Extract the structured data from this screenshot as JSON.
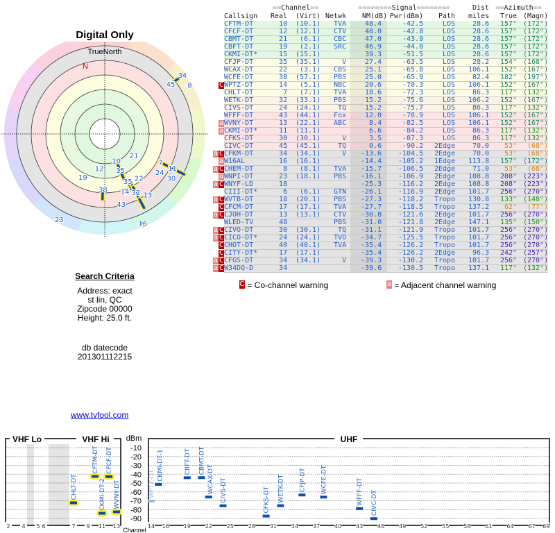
{
  "polar": {
    "title": "Digital Only",
    "north_label": "TrueNorth",
    "magnetic_n": "N"
  },
  "search": {
    "heading": "Search Criteria",
    "address": "Address: exact",
    "city": "st lin, QC",
    "zipcode": "Zipcode 00000",
    "height": "Height: 25.0 ft.",
    "db_label": "db datecode",
    "db_code": "201301112215"
  },
  "link": "www.tvfool.com",
  "table": {
    "group_channel": "Channel",
    "group_signal": "Signal",
    "group_dist": "Dist",
    "group_azimuth": "Azimuth",
    "headers": [
      "Callsign",
      "Real",
      "(Virt)",
      "Netwk",
      "NM(dB)",
      "Pwr(dBm)",
      "Path",
      "miles",
      "True",
      "(Magn)"
    ],
    "rows": [
      {
        "flags": "",
        "callsign": "CFTM-DT",
        "real": "10",
        "virt": "(10.1)",
        "netwk": "TVA",
        "nm": "48.4",
        "pwr": "-42.5",
        "path": "LOS",
        "dist": "28.6",
        "true": "157°",
        "magn": "(172°)",
        "bg": "#e3f7e3",
        "az": "#17855f"
      },
      {
        "flags": "",
        "callsign": "CFCF-DT",
        "real": "12",
        "virt": "(12.1)",
        "netwk": "CTV",
        "nm": "48.0",
        "pwr": "-42.8",
        "path": "LOS",
        "dist": "28.6",
        "true": "157°",
        "magn": "(172°)",
        "bg": "#e3f7e3",
        "az": "#17855f"
      },
      {
        "flags": "",
        "callsign": "CBMT-DT",
        "real": "21",
        "virt": "(6.1)",
        "netwk": "CBC",
        "nm": "47.0",
        "pwr": "-43.9",
        "path": "LOS",
        "dist": "28.6",
        "true": "157°",
        "magn": "(172°)",
        "bg": "#e3f7e3",
        "az": "#17855f"
      },
      {
        "flags": "",
        "callsign": "CBFT-DT",
        "real": "19",
        "virt": "(2.1)",
        "netwk": "SRC",
        "nm": "46.9",
        "pwr": "-44.0",
        "path": "LOS",
        "dist": "28.6",
        "true": "157°",
        "magn": "(172°)",
        "bg": "#e3f7e3",
        "az": "#17855f"
      },
      {
        "flags": "",
        "callsign": "CKMI-DT*",
        "real": "15",
        "virt": "(15.1)",
        "netwk": "",
        "nm": "39.3",
        "pwr": "-51.5",
        "path": "LOS",
        "dist": "28.6",
        "true": "157°",
        "magn": "(172°)",
        "bg": "#e3f7e3",
        "az": "#17855f"
      },
      {
        "flags": "",
        "callsign": "CFJP-DT",
        "real": "35",
        "virt": "(35.1)",
        "netwk": "V",
        "nm": "27.4",
        "pwr": "-63.5",
        "path": "LOS",
        "dist": "28.2",
        "true": "154°",
        "magn": "(168°)",
        "bg": "#fdfde6",
        "az": "#17855f"
      },
      {
        "flags": "",
        "callsign": "WCAX-DT",
        "real": "22",
        "virt": "(3.1)",
        "netwk": "CBS",
        "nm": "25.1",
        "pwr": "-65.8",
        "path": "LOS",
        "dist": "106.1",
        "true": "152°",
        "magn": "(167°)",
        "bg": "#fdfde6",
        "az": "#17855f"
      },
      {
        "flags": "",
        "callsign": "WCFE-DT",
        "real": "38",
        "virt": "(57.1)",
        "netwk": "PBS",
        "nm": "25.0",
        "pwr": "-65.9",
        "path": "LOS",
        "dist": "82.4",
        "true": "182°",
        "magn": "(197°)",
        "bg": "#fdfde6",
        "az": "#17857f"
      },
      {
        "flags": "C",
        "callsign": "WPTZ-DT",
        "real": "14",
        "virt": "(5.1)",
        "netwk": "NBC",
        "nm": "20.6",
        "pwr": "-70.3",
        "path": "LOS",
        "dist": "106.1",
        "true": "152°",
        "magn": "(167°)",
        "bg": "#fdfde6",
        "az": "#17855f"
      },
      {
        "flags": "",
        "callsign": "CHLT-DT",
        "real": "7",
        "virt": "(7.1)",
        "netwk": "TVA",
        "nm": "18.6",
        "pwr": "-72.3",
        "path": "LOS",
        "dist": "86.3",
        "true": "117°",
        "magn": "(132°)",
        "bg": "#fdfde6",
        "az": "#1a941a"
      },
      {
        "flags": "",
        "callsign": "WETK-DT",
        "real": "32",
        "virt": "(33.1)",
        "netwk": "PBS",
        "nm": "15.2",
        "pwr": "-75.6",
        "path": "LOS",
        "dist": "106.2",
        "true": "152°",
        "magn": "(167°)",
        "bg": "#fdf3e4",
        "az": "#17855f"
      },
      {
        "flags": "",
        "callsign": "CIVS-DT",
        "real": "24",
        "virt": "(24.1)",
        "netwk": "TQ",
        "nm": "15.2",
        "pwr": "-75.7",
        "path": "LOS",
        "dist": "86.3",
        "true": "117°",
        "magn": "(132°)",
        "bg": "#fdf3e4",
        "az": "#1a941a"
      },
      {
        "flags": "",
        "callsign": "WFFF-DT",
        "real": "43",
        "virt": "(44.1)",
        "netwk": "Fox",
        "nm": "12.0",
        "pwr": "-78.9",
        "path": "LOS",
        "dist": "106.1",
        "true": "152°",
        "magn": "(167°)",
        "bg": "#fde4e4",
        "az": "#17855f"
      },
      {
        "flags": "a",
        "callsign": "WVNY-DT",
        "real": "13",
        "virt": "(22.1)",
        "netwk": "ABC",
        "nm": "8.4",
        "pwr": "-82.5",
        "path": "LOS",
        "dist": "106.1",
        "true": "152°",
        "magn": "(167°)",
        "bg": "#fde4e4",
        "az": "#17855f"
      },
      {
        "flags": "a",
        "callsign": "CKMI-DT*",
        "real": "11",
        "virt": "(11.1)",
        "netwk": "",
        "nm": "6.6",
        "pwr": "-84.2",
        "path": "LOS",
        "dist": "86.3",
        "true": "117°",
        "magn": "(132°)",
        "bg": "#fde4e4",
        "az": "#1a941a"
      },
      {
        "flags": "",
        "callsign": "CFKS-DT",
        "real": "30",
        "virt": "(30.1)",
        "netwk": "V",
        "nm": "3.5",
        "pwr": "-87.3",
        "path": "LOS",
        "dist": "86.3",
        "true": "117°",
        "magn": "(132°)",
        "bg": "#fde4e4",
        "az": "#1a941a"
      },
      {
        "flags": "",
        "callsign": "CIVC-DT",
        "real": "45",
        "virt": "(45.1)",
        "netwk": "TQ",
        "nm": "0.6",
        "pwr": "-90.2",
        "path": "2Edge",
        "dist": "70.0",
        "true": "53°",
        "magn": "(68°)",
        "bg": "#fde4e4",
        "az": "#d08a1a"
      },
      {
        "flags": "aC",
        "callsign": "CFKM-DT",
        "real": "34",
        "virt": "(34.1)",
        "netwk": "V",
        "nm": "-13.6",
        "pwr": "-104.5",
        "path": "2Edge",
        "dist": "70.0",
        "true": "53°",
        "magn": "(68°)",
        "bg": "#e4e4e4",
        "az": "#d08a1a"
      },
      {
        "flags": "a",
        "callsign": "W16AL",
        "real": "16",
        "virt": "(16.1)",
        "netwk": "",
        "nm": "-14.4",
        "pwr": "-105.2",
        "path": "1Edge",
        "dist": "113.8",
        "true": "157°",
        "magn": "(172°)",
        "bg": "#e4e4e4",
        "az": "#17855f"
      },
      {
        "flags": "aC",
        "callsign": "CHEM-DT",
        "real": "8",
        "virt": "(8.1)",
        "netwk": "TVA",
        "nm": "-15.7",
        "pwr": "-106.5",
        "path": "2Edge",
        "dist": "71.0",
        "true": "53°",
        "magn": "(68°)",
        "bg": "#e4e4e4",
        "az": "#d08a1a"
      },
      {
        "flags": "a",
        "callsign": "WNPI-DT",
        "real": "23",
        "virt": "(18.1)",
        "netwk": "PBS",
        "nm": "-16.1",
        "pwr": "-106.9",
        "path": "2Edge",
        "dist": "108.8",
        "true": "208°",
        "magn": "(223°)",
        "bg": "#e4e4e4",
        "az": "#4a22b0"
      },
      {
        "flags": "aC",
        "callsign": "WNYF-LD",
        "real": "18",
        "virt": "",
        "netwk": "",
        "nm": "-25.3",
        "pwr": "-116.2",
        "path": "2Edge",
        "dist": "108.8",
        "true": "208°",
        "magn": "(223°)",
        "bg": "#e4e4e4",
        "az": "#4a22b0"
      },
      {
        "flags": "",
        "callsign": "CIII-DT*",
        "real": "6",
        "virt": "(6.1)",
        "netwk": "GTN",
        "nm": "-26.1",
        "pwr": "-116.9",
        "path": "2Edge",
        "dist": "101.7",
        "true": "256°",
        "magn": "(270°)",
        "bg": "#e4e4e4",
        "az": "#4a22b0"
      },
      {
        "flags": "aC",
        "callsign": "WVTB-DT",
        "real": "18",
        "virt": "(20.1)",
        "netwk": "PBS",
        "nm": "-27.3",
        "pwr": "-118.2",
        "path": "Tropo",
        "dist": "130.8",
        "true": "133°",
        "magn": "(148°)",
        "bg": "#e4e4e4",
        "az": "#1a941a"
      },
      {
        "flags": "C",
        "callsign": "CFCM-DT",
        "real": "17",
        "virt": "(17.1)",
        "netwk": "TVA",
        "nm": "-27.7",
        "pwr": "-118.5",
        "path": "Tropo",
        "dist": "137.2",
        "true": "62°",
        "magn": "(77°)",
        "bg": "#e4e4e4",
        "az": "#d08a1a"
      },
      {
        "flags": "aC",
        "callsign": "CJOH-DT",
        "real": "13",
        "virt": "(13.1)",
        "netwk": "CTV",
        "nm": "-30.8",
        "pwr": "-121.6",
        "path": "2Edge",
        "dist": "101.7",
        "true": "256°",
        "magn": "(270°)",
        "bg": "#e4e4e4",
        "az": "#4a22b0"
      },
      {
        "flags": "",
        "callsign": "WLED-TV",
        "real": "48",
        "virt": "",
        "netwk": "PBS",
        "nm": "-31.0",
        "pwr": "-121.8",
        "path": "2Edge",
        "dist": "147.1",
        "true": "135°",
        "magn": "(150°)",
        "bg": "#e4e4e4",
        "az": "#1a941a"
      },
      {
        "flags": "aC",
        "callsign": "CIVO-DT",
        "real": "30",
        "virt": "(30.1)",
        "netwk": "TQ",
        "nm": "-31.1",
        "pwr": "-121.9",
        "path": "Tropo",
        "dist": "101.7",
        "true": "256°",
        "magn": "(270°)",
        "bg": "#e4e4e4",
        "az": "#4a22b0"
      },
      {
        "flags": "aC",
        "callsign": "CICO-DT*",
        "real": "24",
        "virt": "(24.1)",
        "netwk": "TVO",
        "nm": "-34.7",
        "pwr": "-125.5",
        "path": "Tropo",
        "dist": "101.7",
        "true": "256°",
        "magn": "(270°)",
        "bg": "#e4e4e4",
        "az": "#4a22b0"
      },
      {
        "flags": "C",
        "callsign": "CHOT-DT",
        "real": "40",
        "virt": "(40.1)",
        "netwk": "TVA",
        "nm": "-35.4",
        "pwr": "-126.2",
        "path": "Tropo",
        "dist": "101.7",
        "true": "256°",
        "magn": "(270°)",
        "bg": "#e4e4e4",
        "az": "#4a22b0"
      },
      {
        "flags": "C",
        "callsign": "CITY-DT*",
        "real": "17",
        "virt": "(17.1)",
        "netwk": "",
        "nm": "-35.4",
        "pwr": "-126.2",
        "path": "2Edge",
        "dist": "96.3",
        "true": "242°",
        "magn": "(257°)",
        "bg": "#e4e4e4",
        "az": "#4a22b0"
      },
      {
        "flags": "aC",
        "callsign": "CFGS-DT",
        "real": "34",
        "virt": "(34.1)",
        "netwk": "V",
        "nm": "-39.3",
        "pwr": "-130.2",
        "path": "Tropo",
        "dist": "101.7",
        "true": "256°",
        "magn": "(270°)",
        "bg": "#e4e4e4",
        "az": "#4a22b0"
      },
      {
        "flags": "aC",
        "callsign": "W34DQ-D",
        "real": "34",
        "virt": "",
        "netwk": "",
        "nm": "-39.6",
        "pwr": "-130.5",
        "path": "Tropo",
        "dist": "137.1",
        "true": "117°",
        "magn": "(132°)",
        "bg": "#e4e4e4",
        "az": "#1a941a"
      }
    ]
  },
  "legend": {
    "co_symbol": "C",
    "co_label": " = Co-channel warning",
    "adj_symbol": "a",
    "adj_label": " = Adjacent channel warning"
  },
  "colors": {
    "flag_adjacent": "#f08080",
    "flag_cochannel": "#c00000",
    "link": "#0000cc",
    "station_blue": "#1f5fcf"
  },
  "chart_data": {
    "type": "bar",
    "title_vhf_lo": "VHF Lo",
    "title_vhf_hi": "VHF Hi",
    "title_uhf": "UHF",
    "ylabel": "dBm",
    "xlabel": "Channel",
    "yticks": [
      -10,
      -20,
      -30,
      -40,
      -50,
      -60,
      -70,
      -80,
      -90
    ],
    "ylim": [
      -95,
      -5
    ],
    "vhf_ticks": [
      2,
      4,
      5,
      6,
      7,
      9,
      11,
      13
    ],
    "uhf_ticks": [
      14,
      16,
      19,
      22,
      25,
      28,
      31,
      34,
      37,
      40,
      43,
      46,
      49,
      52,
      55,
      58,
      61,
      64,
      67,
      69
    ],
    "stations": [
      {
        "label": "CHLT-DT",
        "channel": 7,
        "dbm": -72.3,
        "highlight": true
      },
      {
        "label": "CFTM-DT",
        "channel": 10,
        "dbm": -42.5,
        "highlight": true
      },
      {
        "label": "CKMI-DT-2",
        "channel": 11,
        "dbm": -84.2,
        "highlight": true
      },
      {
        "label": "CFCF-DT",
        "channel": 12,
        "dbm": -42.8,
        "highlight": true
      },
      {
        "label": "WVNY-DT",
        "channel": 13,
        "dbm": -82.5,
        "highlight": true
      },
      {
        "label": "WPTZ-DT",
        "channel": 14,
        "dbm": -70.3,
        "faded": true
      },
      {
        "label": "CKMI-DT-1",
        "channel": 15,
        "dbm": -51.5
      },
      {
        "label": "CBFT-DT",
        "channel": 19,
        "dbm": -44.0
      },
      {
        "label": "CBMT-DT",
        "channel": 21,
        "dbm": -43.9
      },
      {
        "label": "WCAX-DT",
        "channel": 22,
        "dbm": -65.8
      },
      {
        "label": "CIVS-DT",
        "channel": 24,
        "dbm": -75.7
      },
      {
        "label": "CFKS-DT",
        "channel": 30,
        "dbm": -87.3
      },
      {
        "label": "WETK-DT",
        "channel": 32,
        "dbm": -75.6
      },
      {
        "label": "CFJP-DT",
        "channel": 35,
        "dbm": -63.5
      },
      {
        "label": "WCFE-DT",
        "channel": 38,
        "dbm": -65.9
      },
      {
        "label": "WFFF-DT",
        "channel": 43,
        "dbm": -78.9
      },
      {
        "label": "CIVC-DT",
        "channel": 45,
        "dbm": -90.2
      }
    ]
  }
}
